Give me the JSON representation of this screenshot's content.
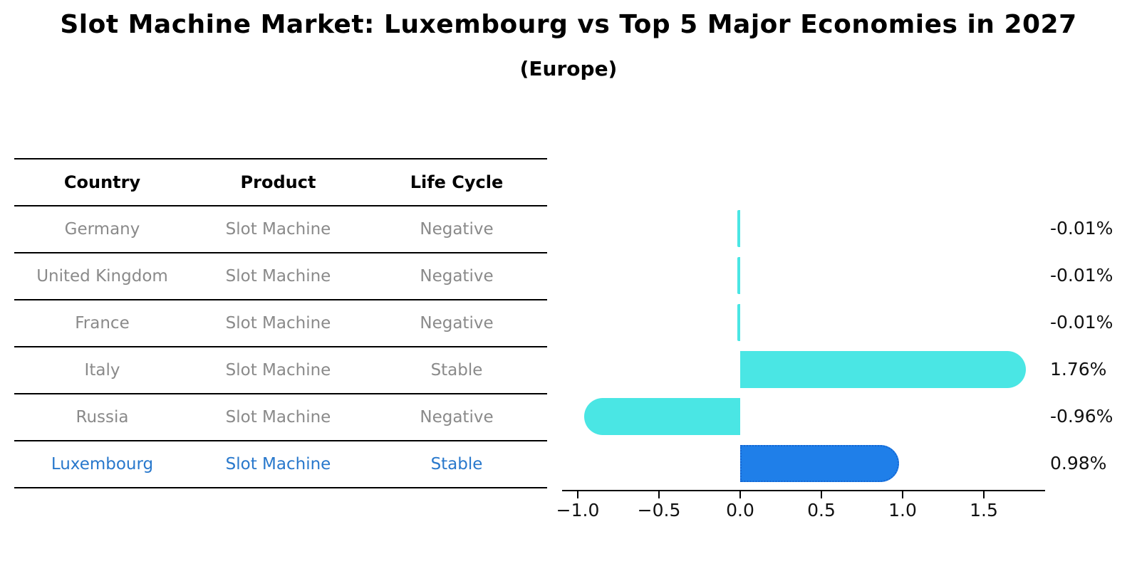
{
  "header": {
    "title": "Slot Machine Market: Luxembourg vs Top 5 Major Economies in 2027",
    "subtitle": "(Europe)"
  },
  "table": {
    "columns": [
      "Country",
      "Product",
      "Life Cycle"
    ],
    "rows": [
      {
        "country": "Germany",
        "product": "Slot Machine",
        "life_cycle": "Negative",
        "highlight": false
      },
      {
        "country": "United Kingdom",
        "product": "Slot Machine",
        "life_cycle": "Negative",
        "highlight": false
      },
      {
        "country": "France",
        "product": "Slot Machine",
        "life_cycle": "Negative",
        "highlight": false
      },
      {
        "country": "Italy",
        "product": "Slot Machine",
        "life_cycle": "Stable",
        "highlight": false
      },
      {
        "country": "Russia",
        "product": "Slot Machine",
        "life_cycle": "Negative",
        "highlight": false
      },
      {
        "country": "Luxembourg",
        "product": "Slot Machine",
        "life_cycle": "Stable",
        "highlight": true
      }
    ]
  },
  "chart_data": {
    "type": "bar",
    "orientation": "horizontal",
    "title": "Slot Machine Market: Luxembourg vs Top 5 Major Economies in 2027",
    "subtitle": "(Europe)",
    "categories": [
      "Germany",
      "United Kingdom",
      "France",
      "Italy",
      "Russia",
      "Luxembourg"
    ],
    "values": [
      -0.01,
      -0.01,
      -0.01,
      1.76,
      -0.96,
      0.98
    ],
    "bar_labels": [
      "-0.01%",
      "-0.01%",
      "-0.01%",
      "1.76%",
      "-0.96%",
      "0.98%"
    ],
    "highlight_index": 5,
    "xlim": [
      -1.1,
      1.9
    ],
    "xticks": [
      -1.0,
      -0.5,
      0.0,
      0.5,
      1.0,
      1.5
    ],
    "xtick_labels": [
      "−1.0",
      "−0.5",
      "0.0",
      "0.5",
      "1.0",
      "1.5"
    ],
    "grid": false,
    "legend": null,
    "colors": {
      "bar_default": "#4ae6e4",
      "bar_highlight": "#1f7fe9",
      "bar_highlight_edge": "#1566d2",
      "highlight_text": "#2878cc",
      "table_body_text": "#8a8a8a",
      "axis_text": "#111111"
    }
  }
}
